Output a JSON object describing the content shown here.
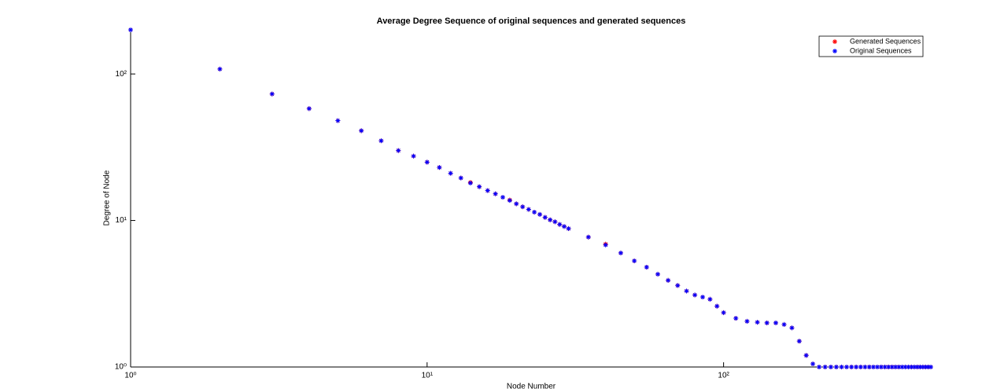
{
  "chart_data": {
    "type": "scatter",
    "title": "Average Degree Sequence of original sequences and generated sequences",
    "x_label": "Node Number",
    "y_label": "Degree of Node",
    "log_x": true,
    "log_y": true,
    "legend": "top-right",
    "xlim": [
      1,
      500
    ],
    "ylim": [
      1,
      200
    ],
    "xticks": [
      {
        "value": 1,
        "label": "10⁰"
      },
      {
        "value": 10,
        "label": "10¹"
      },
      {
        "value": 100,
        "label": "10²"
      }
    ],
    "yticks": [
      {
        "value": 1,
        "label": "10⁰"
      },
      {
        "value": 10,
        "label": "10¹"
      },
      {
        "value": 100,
        "label": "10²"
      }
    ],
    "x": [
      1,
      2,
      3,
      4,
      5,
      6,
      7,
      8,
      9,
      10,
      11,
      12,
      13,
      14,
      15,
      16,
      17,
      18,
      19,
      20,
      21,
      22,
      23,
      24,
      25,
      26,
      27,
      28,
      29,
      30,
      35,
      40,
      45,
      50,
      55,
      60,
      65,
      70,
      75,
      80,
      85,
      90,
      95,
      100,
      110,
      120,
      130,
      140,
      150,
      160,
      170,
      180,
      190,
      200,
      210,
      220,
      230,
      240,
      250,
      260,
      270,
      280,
      290,
      300,
      310,
      320,
      330,
      340,
      350,
      360,
      370,
      380,
      390,
      400,
      410,
      420,
      430,
      440,
      450,
      460,
      470,
      480,
      490,
      500
    ],
    "series": [
      {
        "name": "Generated Sequences",
        "color": "#ff0000",
        "values": [
          200,
          108,
          73,
          58,
          48,
          41,
          35,
          30,
          27.5,
          25,
          23,
          21,
          19.5,
          18.2,
          17,
          16,
          15.2,
          14.4,
          13.8,
          13,
          12.4,
          11.9,
          11.4,
          11,
          10.5,
          10.1,
          9.8,
          9.4,
          9.1,
          8.8,
          7.7,
          6.9,
          6.0,
          5.3,
          4.8,
          4.3,
          3.9,
          3.6,
          3.3,
          3.1,
          3.0,
          2.9,
          2.6,
          2.35,
          2.15,
          2.05,
          2.02,
          2.0,
          2.0,
          1.95,
          1.85,
          1.5,
          1.2,
          1.05,
          1,
          1,
          1,
          1,
          1,
          1,
          1,
          1,
          1,
          1,
          1,
          1,
          1,
          1,
          1,
          1,
          1,
          1,
          1,
          1,
          1,
          1,
          1,
          1,
          1,
          1,
          1,
          1,
          1,
          1
        ]
      },
      {
        "name": "Original Sequences",
        "color": "#0000ff",
        "values": [
          200,
          108,
          73,
          58,
          48,
          41,
          35,
          30,
          27.5,
          25,
          23,
          21,
          19.5,
          18,
          17,
          16,
          15.2,
          14.4,
          13.7,
          13,
          12.4,
          11.9,
          11.4,
          11,
          10.5,
          10.1,
          9.8,
          9.4,
          9.1,
          8.8,
          7.7,
          6.8,
          6.0,
          5.3,
          4.8,
          4.3,
          3.9,
          3.6,
          3.3,
          3.1,
          3.0,
          2.9,
          2.6,
          2.35,
          2.15,
          2.05,
          2.02,
          2.0,
          2.0,
          1.95,
          1.85,
          1.5,
          1.2,
          1.05,
          1,
          1,
          1,
          1,
          1,
          1,
          1,
          1,
          1,
          1,
          1,
          1,
          1,
          1,
          1,
          1,
          1,
          1,
          1,
          1,
          1,
          1,
          1,
          1,
          1,
          1,
          1,
          1,
          1,
          1
        ]
      }
    ]
  }
}
